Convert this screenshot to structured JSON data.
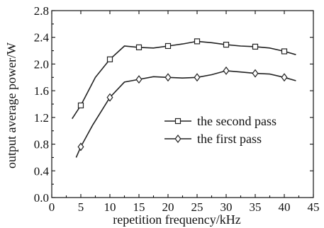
{
  "chart_data": {
    "type": "line",
    "title": "",
    "xlabel": "repetition frequency/kHz",
    "ylabel": "output average power/W",
    "xlim": [
      0,
      45
    ],
    "ylim": [
      0.0,
      2.8
    ],
    "xticks": [
      0,
      5,
      10,
      15,
      20,
      25,
      30,
      35,
      40,
      45
    ],
    "yticks": [
      0.0,
      0.4,
      0.8,
      1.2,
      1.6,
      2.0,
      2.4,
      2.8
    ],
    "xtick_labels": [
      "0",
      "5",
      "10",
      "15",
      "20",
      "25",
      "30",
      "35",
      "40",
      "45"
    ],
    "ytick_labels": [
      "0.0",
      "0.4",
      "0.8",
      "1.2",
      "1.6",
      "2.0",
      "2.4",
      "2.8"
    ],
    "grid": false,
    "legend_position": "center-right",
    "series": [
      {
        "name": "the second pass",
        "marker": "square",
        "x": [
          3.5,
          5,
          7.5,
          10,
          12.5,
          15,
          17.5,
          20,
          22.5,
          25,
          27.5,
          30,
          32.5,
          35,
          37.5,
          40,
          42
        ],
        "y": [
          1.18,
          1.38,
          1.8,
          2.07,
          2.27,
          2.25,
          2.24,
          2.27,
          2.3,
          2.34,
          2.32,
          2.29,
          2.27,
          2.26,
          2.24,
          2.19,
          2.14
        ],
        "marker_x": [
          5,
          10,
          15,
          20,
          25,
          30,
          35,
          40
        ]
      },
      {
        "name": "the first pass",
        "marker": "diamond",
        "x": [
          4.2,
          5,
          7,
          10,
          12.5,
          15,
          17.5,
          20,
          22.5,
          25,
          27.5,
          30,
          32.5,
          35,
          37.5,
          40,
          42
        ],
        "y": [
          0.6,
          0.76,
          1.08,
          1.5,
          1.73,
          1.77,
          1.81,
          1.8,
          1.79,
          1.8,
          1.84,
          1.9,
          1.88,
          1.86,
          1.85,
          1.8,
          1.75
        ],
        "marker_x": [
          5,
          10,
          15,
          20,
          25,
          30,
          35,
          40
        ]
      }
    ]
  }
}
